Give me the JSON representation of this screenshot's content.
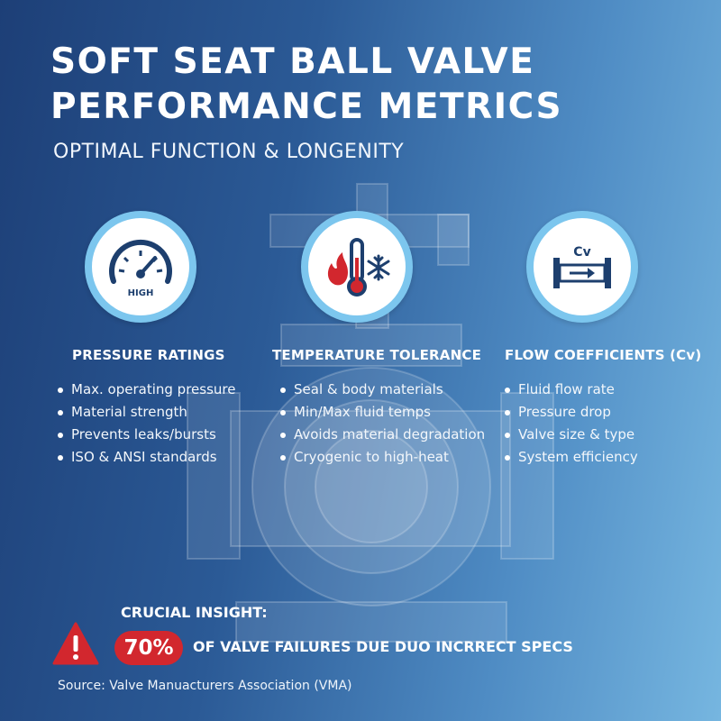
{
  "header": {
    "title_line1": "SOFT SEAT BALL VALVE",
    "title_line2": "PERFORMANCE METRICS",
    "subtitle": "OPTIMAL FUNCTION & LONGENITY"
  },
  "columns": [
    {
      "icon": "pressure-gauge-icon",
      "icon_label": "HIGH",
      "title": "PRESSURE RATINGS",
      "bullets": [
        "Max. operating pressure",
        "Material strength",
        "Prevents leaks/bursts",
        "ISO & ANSI standards"
      ]
    },
    {
      "icon": "temperature-fire-snowflake-icon",
      "title": "TEMPERATURE TOLERANCE",
      "bullets": [
        "Seal & body materials",
        "Min/Max fluid temps",
        "Avoids material degradation",
        "Cryogenic to high-heat"
      ]
    },
    {
      "icon": "flow-coefficient-pipe-icon",
      "icon_label": "Cv",
      "title": "FLOW COEFFICIENTS (Cv)",
      "bullets": [
        "Fluid flow rate",
        "Pressure drop",
        "Valve size & type",
        "System efficiency"
      ]
    }
  ],
  "insight": {
    "label": "CRUCIAL INSIGHT:",
    "icon": "warning-triangle-icon",
    "percent": "70%",
    "text": "OF VALVE FAILURES DUE DUO INCRRECT SPECS"
  },
  "source": "Source: Valve Manuacturers Association (VMA)",
  "colors": {
    "background_start": "#1d3f77",
    "background_end": "#76b6e0",
    "icon_ring": "#7cc6ee",
    "icon_stroke": "#1d3f6e",
    "icon_fire": "#d2272e",
    "badge": "#d2272e"
  }
}
